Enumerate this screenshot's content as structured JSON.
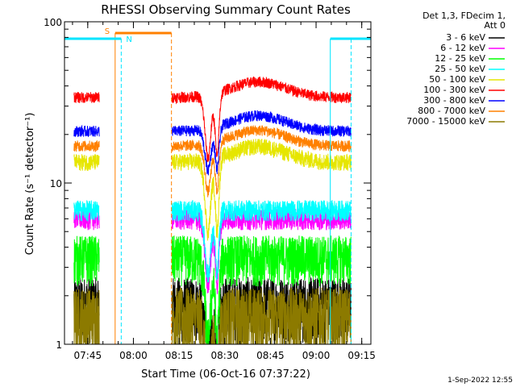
{
  "chart_data": {
    "type": "line",
    "title": "RHESSI Observing Summary Count Rates",
    "xlabel": "Start Time (06-Oct-16 07:37:22)",
    "ylabel": "Count Rate (s⁻¹ detector⁻¹)",
    "yscale": "log",
    "ylim": [
      1,
      100
    ],
    "xlim": [
      "07:37:22",
      "09:18:00"
    ],
    "x_ticks": [
      "07:45",
      "08:00",
      "08:15",
      "08:30",
      "08:45",
      "09:00",
      "09:15"
    ],
    "y_ticks": [
      "1",
      "10",
      "100"
    ],
    "grid": false,
    "legend_header": [
      "Det 1,3, FDecim 1,",
      "Att 0"
    ],
    "timestamp": "1-Sep-2022 12:55",
    "markers": [
      {
        "label": "S",
        "color": "#ff8000",
        "start": "07:54:00",
        "end": "08:12:30"
      },
      {
        "label": "N",
        "color": "#00e5ff",
        "start": "07:56:00",
        "end": "08:12:30"
      }
    ],
    "series": [
      {
        "name": "3 - 6 keV",
        "color": "#000000"
      },
      {
        "name": "6 - 12 keV",
        "color": "#ff00ff"
      },
      {
        "name": "12 - 25 keV",
        "color": "#00ff00"
      },
      {
        "name": "25 - 50 keV",
        "color": "#00ffff"
      },
      {
        "name": "50 - 100 keV",
        "color": "#e6e600"
      },
      {
        "name": "100 - 300 keV",
        "color": "#ff0000"
      },
      {
        "name": "300 - 800 keV",
        "color": "#0000ff"
      },
      {
        "name": "800 - 7000 keV",
        "color": "#ff8000"
      },
      {
        "name": "7000 - 15000 keV",
        "color": "#8c7a00"
      }
    ]
  }
}
